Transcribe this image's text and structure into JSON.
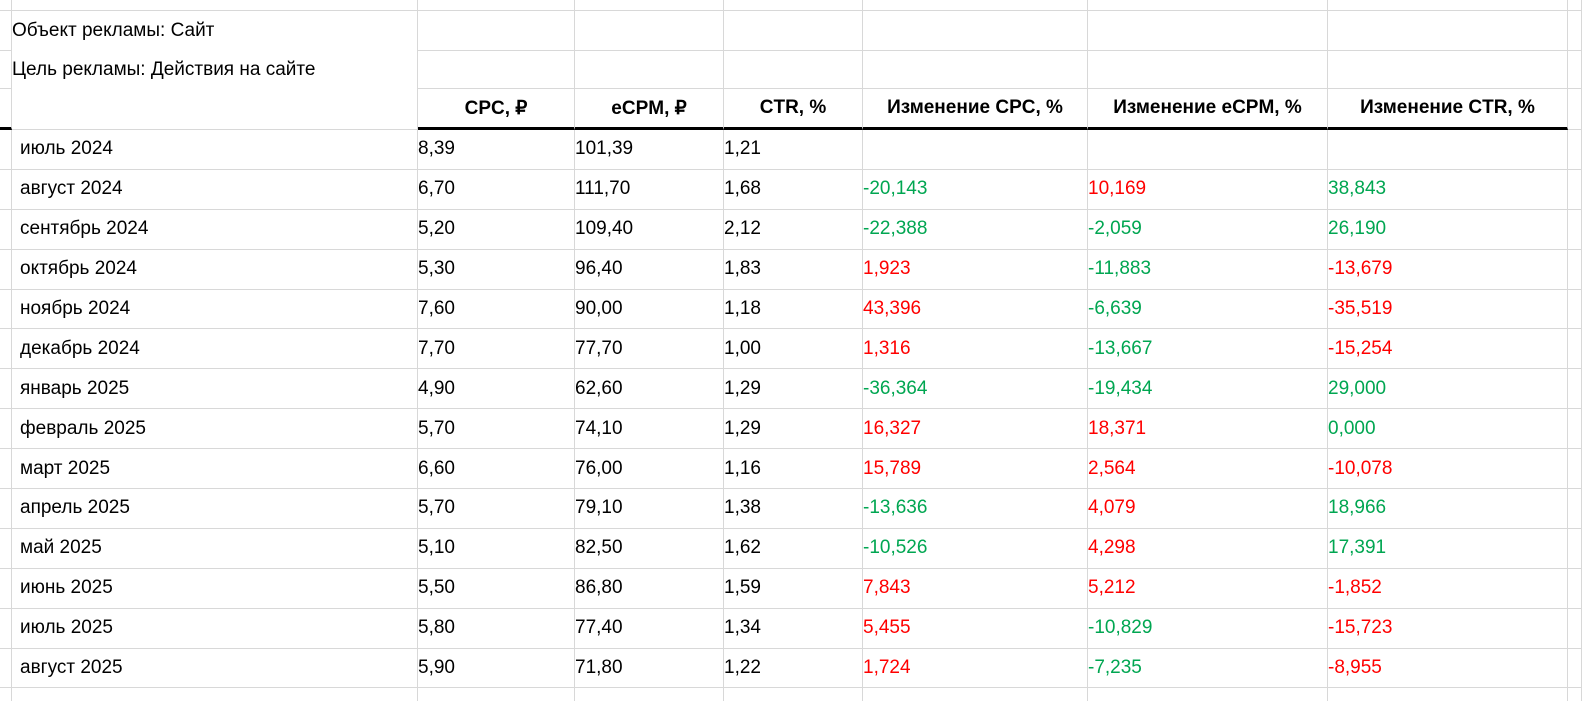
{
  "meta": {
    "object_line": "Объект рекламы: Сайт",
    "goal_line": "Цель рекламы: Действия на сайте"
  },
  "table": {
    "headers": [
      "CPC, ₽",
      "eCPM, ₽",
      "CTR, %",
      "Изменение CPC, %",
      "Изменение eCPM, %",
      "Изменение CTR, %"
    ],
    "rows": [
      {
        "month": "июль 2024",
        "cpc": "8,39",
        "ecpm": "101,39",
        "ctr": "1,21",
        "cpc_change": null,
        "ecpm_change": null,
        "ctr_change": null
      },
      {
        "month": "август 2024",
        "cpc": "6,70",
        "ecpm": "111,70",
        "ctr": "1,68",
        "cpc_change": {
          "value": "-20,143",
          "color": "green"
        },
        "ecpm_change": {
          "value": "10,169",
          "color": "red"
        },
        "ctr_change": {
          "value": "38,843",
          "color": "green"
        }
      },
      {
        "month": "сентябрь 2024",
        "cpc": "5,20",
        "ecpm": "109,40",
        "ctr": "2,12",
        "cpc_change": {
          "value": "-22,388",
          "color": "green"
        },
        "ecpm_change": {
          "value": "-2,059",
          "color": "green"
        },
        "ctr_change": {
          "value": "26,190",
          "color": "green"
        }
      },
      {
        "month": "октябрь 2024",
        "cpc": "5,30",
        "ecpm": "96,40",
        "ctr": "1,83",
        "cpc_change": {
          "value": "1,923",
          "color": "red"
        },
        "ecpm_change": {
          "value": "-11,883",
          "color": "green"
        },
        "ctr_change": {
          "value": "-13,679",
          "color": "red"
        }
      },
      {
        "month": "ноябрь 2024",
        "cpc": "7,60",
        "ecpm": "90,00",
        "ctr": "1,18",
        "cpc_change": {
          "value": "43,396",
          "color": "red"
        },
        "ecpm_change": {
          "value": "-6,639",
          "color": "green"
        },
        "ctr_change": {
          "value": "-35,519",
          "color": "red"
        }
      },
      {
        "month": "декабрь 2024",
        "cpc": "7,70",
        "ecpm": "77,70",
        "ctr": "1,00",
        "cpc_change": {
          "value": "1,316",
          "color": "red"
        },
        "ecpm_change": {
          "value": "-13,667",
          "color": "green"
        },
        "ctr_change": {
          "value": "-15,254",
          "color": "red"
        }
      },
      {
        "month": "январь 2025",
        "cpc": "4,90",
        "ecpm": "62,60",
        "ctr": "1,29",
        "cpc_change": {
          "value": "-36,364",
          "color": "green"
        },
        "ecpm_change": {
          "value": "-19,434",
          "color": "green"
        },
        "ctr_change": {
          "value": "29,000",
          "color": "green"
        }
      },
      {
        "month": "февраль 2025",
        "cpc": "5,70",
        "ecpm": "74,10",
        "ctr": "1,29",
        "cpc_change": {
          "value": "16,327",
          "color": "red"
        },
        "ecpm_change": {
          "value": "18,371",
          "color": "red"
        },
        "ctr_change": {
          "value": "0,000",
          "color": "green"
        }
      },
      {
        "month": "март 2025",
        "cpc": "6,60",
        "ecpm": "76,00",
        "ctr": "1,16",
        "cpc_change": {
          "value": "15,789",
          "color": "red"
        },
        "ecpm_change": {
          "value": "2,564",
          "color": "red"
        },
        "ctr_change": {
          "value": "-10,078",
          "color": "red"
        }
      },
      {
        "month": "апрель 2025",
        "cpc": "5,70",
        "ecpm": "79,10",
        "ctr": "1,38",
        "cpc_change": {
          "value": "-13,636",
          "color": "green"
        },
        "ecpm_change": {
          "value": "4,079",
          "color": "red"
        },
        "ctr_change": {
          "value": "18,966",
          "color": "green"
        }
      },
      {
        "month": "май 2025",
        "cpc": "5,10",
        "ecpm": "82,50",
        "ctr": "1,62",
        "cpc_change": {
          "value": "-10,526",
          "color": "green"
        },
        "ecpm_change": {
          "value": "4,298",
          "color": "red"
        },
        "ctr_change": {
          "value": "17,391",
          "color": "green"
        }
      },
      {
        "month": "июнь 2025",
        "cpc": "5,50",
        "ecpm": "86,80",
        "ctr": "1,59",
        "cpc_change": {
          "value": "7,843",
          "color": "red"
        },
        "ecpm_change": {
          "value": "5,212",
          "color": "red"
        },
        "ctr_change": {
          "value": "-1,852",
          "color": "red"
        }
      },
      {
        "month": "июль 2025",
        "cpc": "5,80",
        "ecpm": "77,40",
        "ctr": "1,34",
        "cpc_change": {
          "value": "5,455",
          "color": "red"
        },
        "ecpm_change": {
          "value": "-10,829",
          "color": "green"
        },
        "ctr_change": {
          "value": "-15,723",
          "color": "red"
        }
      },
      {
        "month": "август 2025",
        "cpc": "5,90",
        "ecpm": "71,80",
        "ctr": "1,22",
        "cpc_change": {
          "value": "1,724",
          "color": "red"
        },
        "ecpm_change": {
          "value": "-7,235",
          "color": "green"
        },
        "ctr_change": {
          "value": "-8,955",
          "color": "red"
        }
      }
    ]
  },
  "colors": {
    "green": "#00a651",
    "red": "#ff0000",
    "gridline": "#d8d8d8",
    "header_border": "#000000"
  }
}
